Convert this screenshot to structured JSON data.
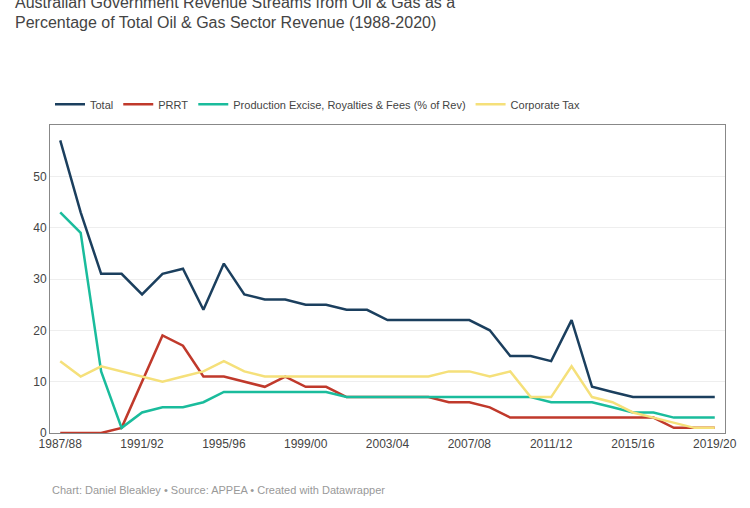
{
  "chart_data": {
    "type": "line",
    "title": "Australian Government Revenue Streams from Oil & Gas as a\nPercentage of Total Oil & Gas Sector Revenue (1988-2020)",
    "categories": [
      "1987/88",
      null,
      null,
      null,
      "1991/92",
      null,
      null,
      null,
      "1995/96",
      null,
      null,
      null,
      "1999/00",
      null,
      null,
      null,
      "2003/04",
      null,
      null,
      null,
      "2007/08",
      null,
      null,
      null,
      "2011/12",
      null,
      null,
      null,
      "2015/16",
      null,
      null,
      null,
      "2019/20"
    ],
    "series": [
      {
        "name": "Total",
        "color": "#1b3f5e",
        "values": [
          57,
          43,
          31,
          31,
          27,
          31,
          32,
          24,
          33,
          27,
          26,
          26,
          25,
          25,
          24,
          24,
          22,
          22,
          22,
          22,
          22,
          20,
          15,
          15,
          14,
          22,
          9,
          8,
          7,
          7,
          7,
          7,
          7
        ]
      },
      {
        "name": "PRRT",
        "color": "#c0392b",
        "values": [
          0,
          0,
          0,
          1,
          10,
          19,
          17,
          11,
          11,
          10,
          9,
          11,
          9,
          9,
          7,
          7,
          7,
          7,
          7,
          6,
          6,
          5,
          3,
          3,
          3,
          3,
          3,
          3,
          3,
          3,
          1,
          1,
          1
        ]
      },
      {
        "name": "Production Excise, Royalties & Fees (% of Rev)",
        "color": "#1abc9c",
        "values": [
          43,
          39,
          12,
          1,
          4,
          5,
          5,
          6,
          8,
          8,
          8,
          8,
          8,
          8,
          7,
          7,
          7,
          7,
          7,
          7,
          7,
          7,
          7,
          7,
          6,
          6,
          6,
          5,
          4,
          4,
          3,
          3,
          3
        ]
      },
      {
        "name": "Corporate Tax",
        "color": "#f5e07a",
        "values": [
          14,
          11,
          13,
          12,
          11,
          10,
          11,
          12,
          14,
          12,
          11,
          11,
          11,
          11,
          11,
          11,
          11,
          11,
          11,
          12,
          12,
          11,
          12,
          7,
          7,
          13,
          7,
          6,
          4,
          3,
          2,
          1,
          1
        ]
      }
    ],
    "ylim": [
      0,
      60
    ],
    "yticks": [
      0,
      10,
      20,
      30,
      40,
      50
    ],
    "grid": true,
    "legend": "top",
    "annotations": [
      "Chart: Daniel Bleakley • Source: APPEA • Created with Datawrapper"
    ]
  }
}
